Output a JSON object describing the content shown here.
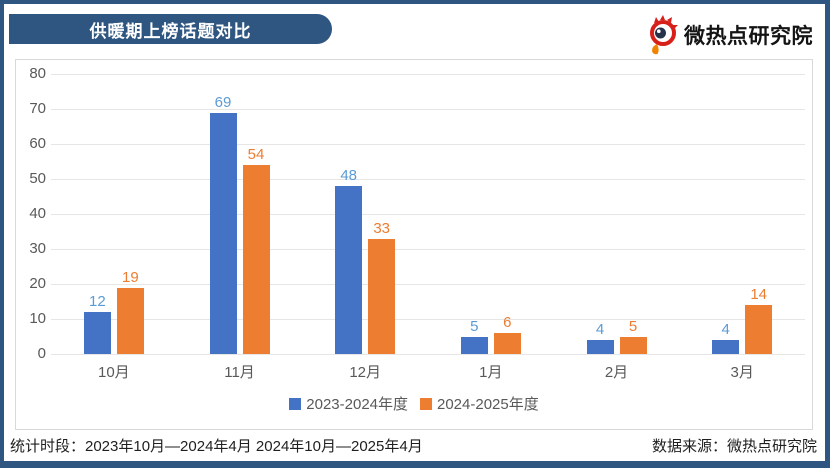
{
  "header": {
    "title": "供暖期上榜话题对比",
    "logo_text": "微热点研究院"
  },
  "colors": {
    "frame_navy": "#2F5680",
    "series_blue": "#4472C4",
    "series_blue_label": "#5B9BD5",
    "series_orange": "#ED7D31",
    "gridline": "#E6E6E6",
    "axis_text": "#595959"
  },
  "chart_data": {
    "type": "bar",
    "title": "供暖期上榜话题对比",
    "categories": [
      "10月",
      "11月",
      "12月",
      "1月",
      "2月",
      "3月"
    ],
    "series": [
      {
        "name": "2023-2024年度",
        "color": "#4472C4",
        "label_color": "#5B9BD5",
        "values": [
          12,
          69,
          48,
          5,
          4,
          4
        ]
      },
      {
        "name": "2024-2025年度",
        "color": "#ED7D31",
        "label_color": "#ED7D31",
        "values": [
          19,
          54,
          33,
          6,
          5,
          14
        ]
      }
    ],
    "xlabel": "",
    "ylabel": "",
    "ylim": [
      0,
      80
    ],
    "ytick_step": 10,
    "grid": true,
    "legend_position": "bottom"
  },
  "footer": {
    "stats_period": "统计时段：2023年10月—2024年4月 2024年10月—2025年4月",
    "data_source": "数据来源：微热点研究院"
  }
}
